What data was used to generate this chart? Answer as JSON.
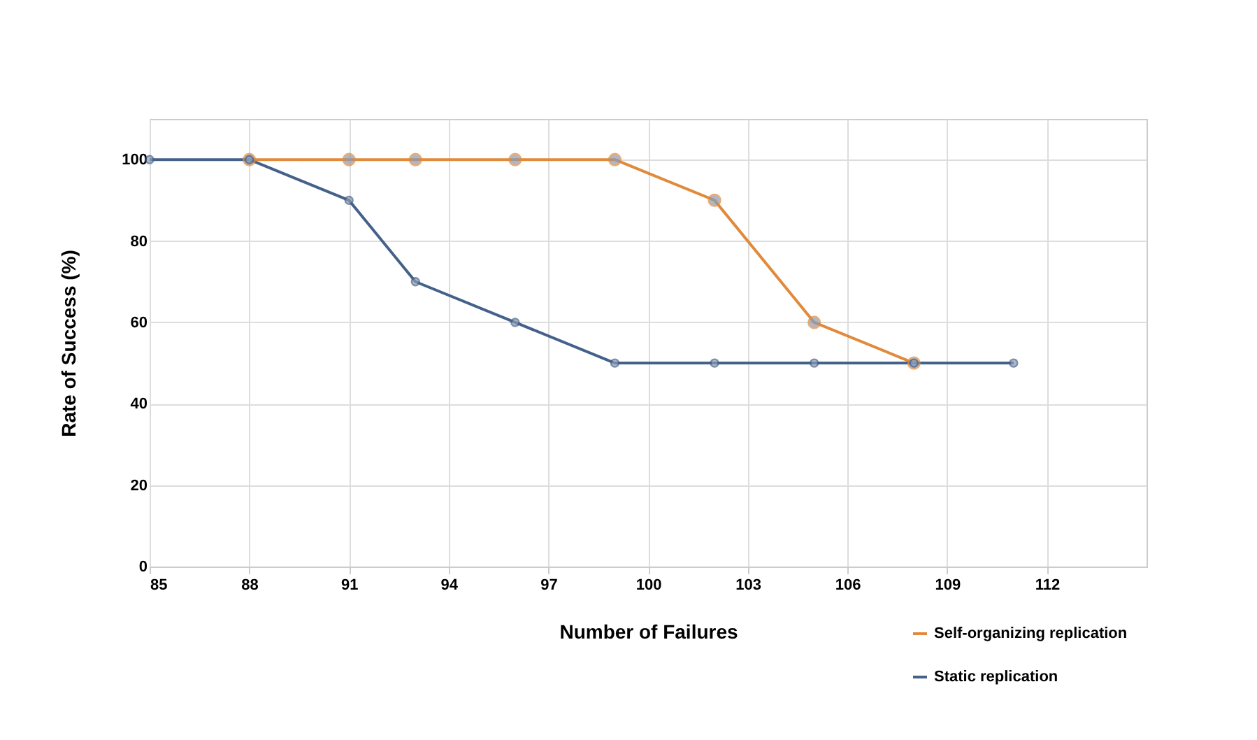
{
  "chart_data": {
    "type": "line",
    "xlabel": "Number of Failures",
    "ylabel": "Rate of Success (%)",
    "xlim": [
      85,
      115
    ],
    "xticks": [
      85,
      88,
      91,
      94,
      97,
      100,
      103,
      106,
      109,
      112
    ],
    "ylim": [
      0,
      110
    ],
    "yticks": [
      0,
      20,
      40,
      60,
      80,
      100
    ],
    "grid": true,
    "legend": "bottom right",
    "marker": "circle",
    "line_style": "solid",
    "series": [
      {
        "name": "Self-organizing replication",
        "color": "#e08a3c",
        "x": [
          88,
          91,
          93,
          96,
          99,
          102,
          105,
          108
        ],
        "values": [
          100,
          100,
          100,
          100,
          100,
          90,
          60,
          50
        ]
      },
      {
        "name": "Static replication",
        "color": "#44618a",
        "x": [
          85,
          88,
          91,
          93,
          96,
          99,
          102,
          105,
          108,
          111
        ],
        "values": [
          100,
          100,
          90,
          70,
          60,
          50,
          50,
          50,
          50,
          50
        ]
      }
    ]
  }
}
